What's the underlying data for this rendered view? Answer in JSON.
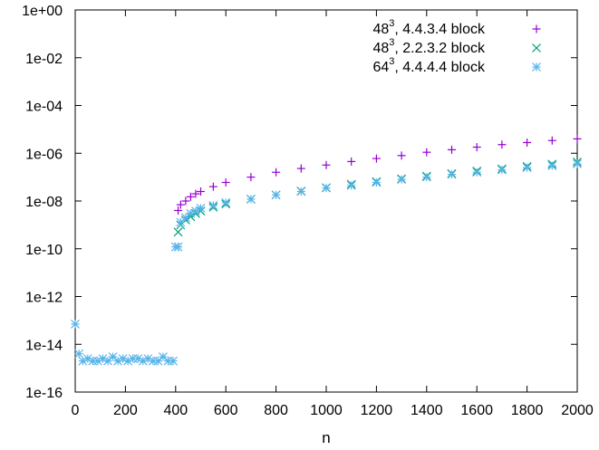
{
  "chart_data": {
    "type": "scatter",
    "title": "",
    "xlabel": "n",
    "ylabel": "",
    "xlim": [
      0,
      2000
    ],
    "ylim": [
      1e-16,
      1
    ],
    "yscale": "log",
    "grid": false,
    "legend_position": "top-right",
    "x_ticks": [
      0,
      200,
      400,
      600,
      800,
      1000,
      1200,
      1400,
      1600,
      1800,
      2000
    ],
    "x_tick_labels": [
      "0",
      "200",
      "400",
      "600",
      "800",
      "1000",
      "1200",
      "1400",
      "1600",
      "1800",
      "2000"
    ],
    "y_ticks": [
      1,
      0.01,
      0.0001,
      1e-06,
      1e-08,
      1e-10,
      1e-12,
      1e-14,
      1e-16
    ],
    "y_tick_labels": [
      "1e+00",
      "1e-02",
      "1e-04",
      "1e-06",
      "1e-08",
      "1e-10",
      "1e-12",
      "1e-14",
      "1e-16"
    ],
    "series": [
      {
        "name_base": "48",
        "name_exp": "3",
        "name_rest": ", 4.4.3.4 block",
        "marker": "plus",
        "color": "#9400d3",
        "x": [
          410,
          420,
          440,
          460,
          480,
          500,
          550,
          600,
          700,
          800,
          900,
          1000,
          1100,
          1200,
          1300,
          1400,
          1500,
          1600,
          1700,
          1800,
          1900,
          2000
        ],
        "y": [
          4e-09,
          7e-09,
          1e-08,
          1.5e-08,
          2e-08,
          2.5e-08,
          4e-08,
          6e-08,
          1e-07,
          1.6e-07,
          2.3e-07,
          3.2e-07,
          4.5e-07,
          6e-07,
          8e-07,
          1.1e-06,
          1.4e-06,
          1.8e-06,
          2.3e-06,
          2.8e-06,
          3.4e-06,
          4e-06
        ]
      },
      {
        "name_base": "48",
        "name_exp": "3",
        "name_rest": ", 2.2.3.2 block",
        "marker": "cross",
        "color": "#009e73",
        "x": [
          410,
          420,
          440,
          460,
          480,
          500,
          550,
          600,
          700,
          800,
          900,
          1000,
          1100,
          1200,
          1300,
          1400,
          1500,
          1600,
          1700,
          1800,
          1900,
          2000
        ],
        "y": [
          5e-10,
          1e-09,
          1.6e-09,
          2.2e-09,
          3e-09,
          3.8e-09,
          5.5e-09,
          7.5e-09,
          1.2e-08,
          1.8e-08,
          2.6e-08,
          3.6e-08,
          5e-08,
          6.5e-08,
          8.5e-08,
          1.1e-07,
          1.4e-07,
          1.8e-07,
          2.2e-07,
          2.8e-07,
          3.5e-07,
          4.3e-07
        ]
      },
      {
        "name_base": "64",
        "name_exp": "3",
        "name_rest": ", 4.4.4.4 block",
        "marker": "star",
        "color": "#56b4e9",
        "x": [
          0,
          15,
          30,
          50,
          70,
          90,
          110,
          130,
          150,
          170,
          190,
          210,
          230,
          250,
          270,
          290,
          310,
          330,
          350,
          370,
          390,
          400,
          410,
          420,
          440,
          460,
          480,
          500,
          550,
          600,
          700,
          800,
          900,
          1000,
          1100,
          1200,
          1300,
          1400,
          1500,
          1600,
          1700,
          1800,
          1900,
          2000
        ],
        "y": [
          7e-14,
          4e-15,
          2e-15,
          2.5e-15,
          2e-15,
          2e-15,
          2.5e-15,
          2e-15,
          3e-15,
          2e-15,
          2.5e-15,
          2e-15,
          2.5e-15,
          2.5e-15,
          2e-15,
          2.5e-15,
          2e-15,
          2e-15,
          3e-15,
          2e-15,
          2e-15,
          1.2e-10,
          1.2e-10,
          1.3e-09,
          2e-09,
          3e-09,
          3.8e-09,
          5e-09,
          6.5e-09,
          8.5e-09,
          1.2e-08,
          1.8e-08,
          2.5e-08,
          3.5e-08,
          4.5e-08,
          6e-08,
          8e-08,
          1e-07,
          1.3e-07,
          1.6e-07,
          2e-07,
          2.5e-07,
          3e-07,
          3.6e-07
        ]
      }
    ]
  }
}
